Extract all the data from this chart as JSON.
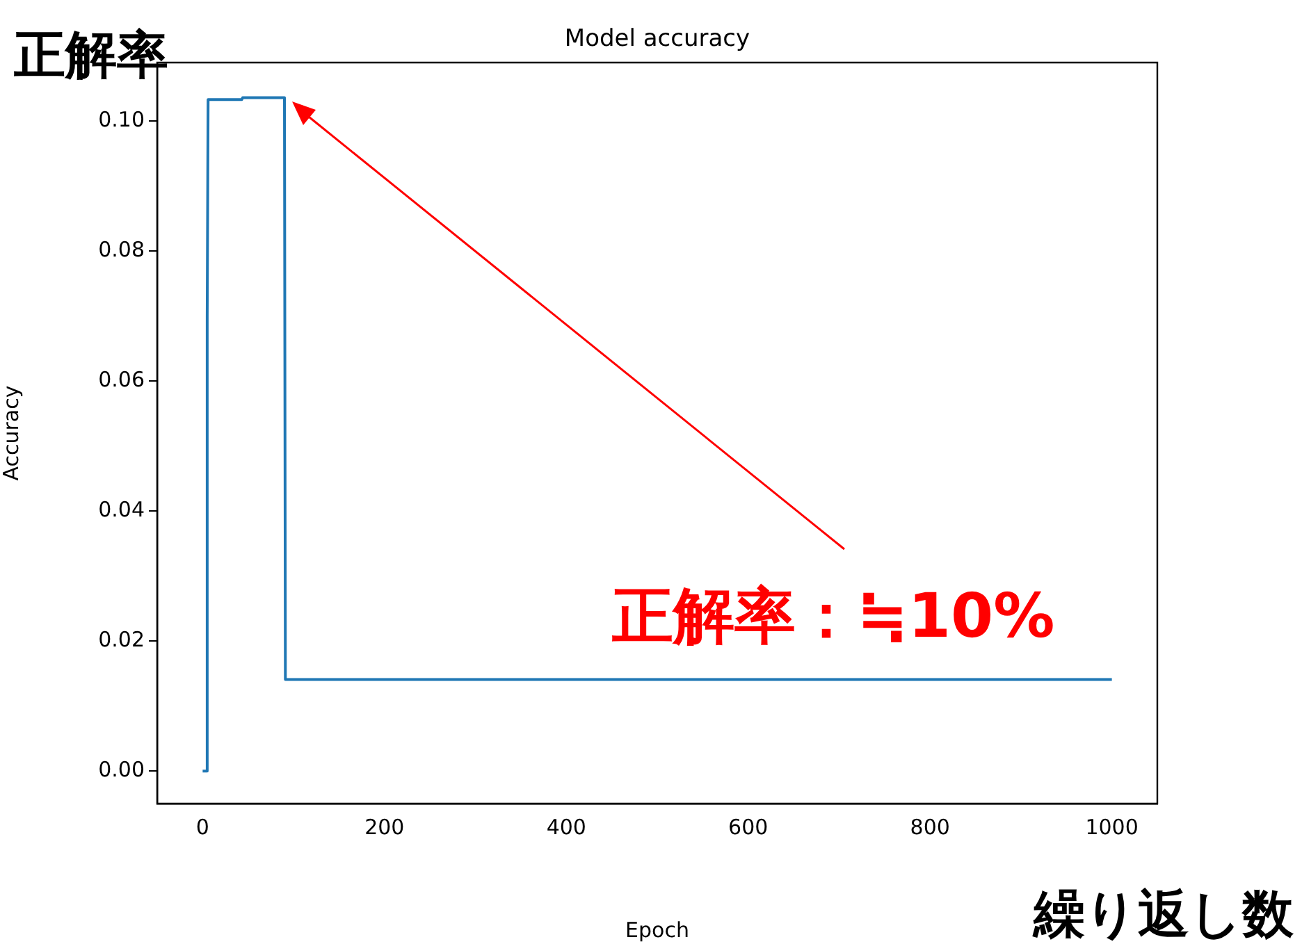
{
  "chart_data": {
    "type": "line",
    "title": "Model accuracy",
    "xlabel": "Epoch",
    "ylabel": "Accuracy",
    "series": [
      {
        "color": "#1f77b4",
        "x": [
          0,
          4,
          5,
          6,
          43,
          44,
          90,
          91,
          1000
        ],
        "values": [
          0,
          0,
          0.07,
          0.1033,
          0.1033,
          0.1036,
          0.1036,
          0.0141,
          0.0141
        ]
      }
    ],
    "xlim": [
      -50,
      1050
    ],
    "xticks": [
      0,
      200,
      400,
      600,
      800,
      1000
    ],
    "ylim": [
      -0.005,
      0.109
    ],
    "yticks": [
      {
        "value": 0,
        "label": "0.00"
      },
      {
        "value": 0.02,
        "label": "0.02"
      },
      {
        "value": 0.04,
        "label": "0.04"
      },
      {
        "value": 0.06,
        "label": "0.06"
      },
      {
        "value": 0.08,
        "label": "0.08"
      },
      {
        "value": 0.1,
        "label": "0.10"
      }
    ],
    "grid": false,
    "legend": false,
    "marker": "none",
    "line_style": "solid",
    "annotations": [
      "正解率",
      "繰り返し数",
      "正解率：≒10%"
    ]
  }
}
